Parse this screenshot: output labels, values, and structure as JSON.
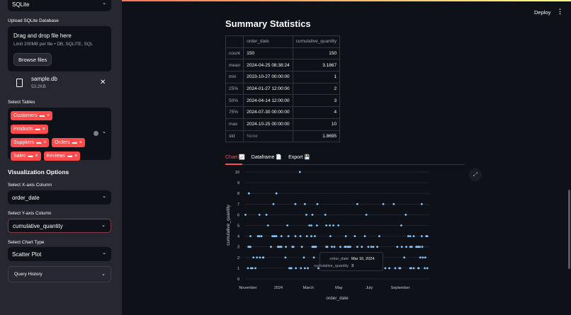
{
  "sidebar": {
    "db_type": "SQLite",
    "upload_label": "Upload SQLite Database",
    "dropzone_title": "Drag and drop file here",
    "dropzone_hint": "Limit 200MB per file • DB, SQLITE, SQL",
    "browse_label": "Browse files",
    "file": {
      "name": "sample.db",
      "size": "53.2KB"
    },
    "tables_label": "Select Tables",
    "tables": [
      "Customers",
      "Products",
      "Suppliers",
      "Orders",
      "Sales",
      "Reviews"
    ],
    "viz_heading": "Visualization Options",
    "x_label": "Select X-axis Column",
    "x_value": "order_date",
    "y_label": "Select Y-axis Column",
    "y_value": "cumulative_quantity",
    "chart_label": "Select Chart Type",
    "chart_value": "Scatter Plot",
    "history_label": "Query History"
  },
  "header": {
    "deploy": "Deploy"
  },
  "main": {
    "title": "Summary Statistics",
    "table": {
      "columns": [
        "",
        "order_date",
        "cumulative_quantity"
      ],
      "rows": [
        [
          "count",
          "150",
          "150"
        ],
        [
          "mean",
          "2024-04-25 08:38:24",
          "3.1867"
        ],
        [
          "min",
          "2023-10-27 00:00:00",
          "1"
        ],
        [
          "25%",
          "2024-01-27 12:00:00",
          "2"
        ],
        [
          "50%",
          "2024-04-14 12:00:00",
          "3"
        ],
        [
          "75%",
          "2024-07-30 00:00:00",
          "4"
        ],
        [
          "max",
          "2024-10-25 00:00:00",
          "10"
        ],
        [
          "std",
          "None",
          "1.8695"
        ]
      ]
    },
    "tabs": [
      "Chart 📈",
      "Dataframe 📄",
      "Export 💾"
    ],
    "active_tab": 0
  },
  "colors": {
    "accent": "#ff4b4b",
    "point": "#83c9ff",
    "sidebar": "#262730",
    "background": "#0e1117"
  },
  "chart_data": {
    "type": "scatter",
    "xlabel": "order_date",
    "ylabel": "cumulative_quantity",
    "x_ticks": [
      "November",
      "2024",
      "March",
      "May",
      "July",
      "September"
    ],
    "y_ticks": [
      0,
      1,
      2,
      3,
      4,
      5,
      6,
      7,
      8,
      9,
      10
    ],
    "ylim": [
      0,
      10
    ],
    "grid": true,
    "tooltip": {
      "x_label": "order_date",
      "x_value": "Mar 16, 2024",
      "y_label": "cumulative_quantity",
      "y_value": "3"
    },
    "points": [
      [
        "2024-02-13",
        10
      ],
      [
        "2023-11-03",
        8
      ],
      [
        "2023-12-28",
        8
      ],
      [
        "2023-12-22",
        7
      ],
      [
        "2024-02-04",
        7
      ],
      [
        "2024-02-23",
        7
      ],
      [
        "2024-03-19",
        7
      ],
      [
        "2024-06-07",
        7
      ],
      [
        "2024-07-29",
        7
      ],
      [
        "2024-08-19",
        7
      ],
      [
        "2024-10-14",
        7
      ],
      [
        "2023-10-27",
        6
      ],
      [
        "2023-11-24",
        6
      ],
      [
        "2023-12-08",
        6
      ],
      [
        "2024-02-26",
        6
      ],
      [
        "2024-03-09",
        6
      ],
      [
        "2024-04-04",
        6
      ],
      [
        "2024-06-25",
        6
      ],
      [
        "2024-09-12",
        6
      ],
      [
        "2023-12-11",
        5
      ],
      [
        "2024-01-19",
        5
      ],
      [
        "2024-03-03",
        5
      ],
      [
        "2024-03-07",
        5
      ],
      [
        "2024-03-18",
        5
      ],
      [
        "2024-04-06",
        5
      ],
      [
        "2024-04-13",
        5
      ],
      [
        "2024-04-20",
        5
      ],
      [
        "2024-04-30",
        5
      ],
      [
        "2024-09-03",
        5
      ],
      [
        "2023-11-06",
        4
      ],
      [
        "2023-11-21",
        4
      ],
      [
        "2023-11-24",
        4
      ],
      [
        "2023-11-28",
        4
      ],
      [
        "2023-12-20",
        4
      ],
      [
        "2023-12-23",
        4
      ],
      [
        "2023-12-25",
        4
      ],
      [
        "2023-12-28",
        4
      ],
      [
        "2024-01-07",
        4
      ],
      [
        "2024-01-21",
        4
      ],
      [
        "2024-02-04",
        4
      ],
      [
        "2024-02-14",
        4
      ],
      [
        "2024-02-27",
        4
      ],
      [
        "2024-03-07",
        4
      ],
      [
        "2024-03-14",
        4
      ],
      [
        "2024-04-14",
        4
      ],
      [
        "2024-05-15",
        4
      ],
      [
        "2024-06-02",
        4
      ],
      [
        "2024-06-22",
        4
      ],
      [
        "2024-07-21",
        4
      ],
      [
        "2024-09-17",
        4
      ],
      [
        "2024-09-21",
        4
      ],
      [
        "2024-09-28",
        4
      ],
      [
        "2024-10-14",
        4
      ],
      [
        "2024-10-23",
        4
      ],
      [
        "2024-10-25",
        4
      ],
      [
        "2023-11-02",
        3
      ],
      [
        "2023-11-04",
        3
      ],
      [
        "2023-11-06",
        3
      ],
      [
        "2023-12-17",
        3
      ],
      [
        "2023-12-31",
        3
      ],
      [
        "2024-01-02",
        3
      ],
      [
        "2024-01-05",
        3
      ],
      [
        "2024-01-07",
        3
      ],
      [
        "2024-01-16",
        3
      ],
      [
        "2024-01-29",
        3
      ],
      [
        "2024-01-31",
        3
      ],
      [
        "2024-02-17",
        3
      ],
      [
        "2024-03-09",
        3
      ],
      [
        "2024-03-11",
        3
      ],
      [
        "2024-03-13",
        3
      ],
      [
        "2024-03-14",
        3
      ],
      [
        "2024-03-16",
        3
      ],
      [
        "2024-04-06",
        3
      ],
      [
        "2024-04-08",
        3
      ],
      [
        "2024-04-17",
        3
      ],
      [
        "2024-04-22",
        3
      ],
      [
        "2024-05-04",
        3
      ],
      [
        "2024-05-13",
        3
      ],
      [
        "2024-05-15",
        3
      ],
      [
        "2024-05-19",
        3
      ],
      [
        "2024-05-21",
        3
      ],
      [
        "2024-05-24",
        3
      ],
      [
        "2024-06-07",
        3
      ],
      [
        "2024-06-16",
        3
      ],
      [
        "2024-06-29",
        3
      ],
      [
        "2024-07-05",
        3
      ],
      [
        "2024-07-09",
        3
      ],
      [
        "2024-07-17",
        3
      ],
      [
        "2024-08-26",
        3
      ],
      [
        "2024-09-04",
        3
      ],
      [
        "2024-09-13",
        3
      ],
      [
        "2024-09-21",
        3
      ],
      [
        "2024-09-24",
        3
      ],
      [
        "2024-10-03",
        3
      ],
      [
        "2024-10-05",
        3
      ],
      [
        "2024-10-07",
        3
      ],
      [
        "2024-10-10",
        3
      ],
      [
        "2024-10-15",
        3
      ],
      [
        "2023-11-12",
        2
      ],
      [
        "2023-11-19",
        2
      ],
      [
        "2023-11-25",
        2
      ],
      [
        "2023-12-01",
        2
      ],
      [
        "2023-12-02",
        2
      ],
      [
        "2024-01-15",
        2
      ],
      [
        "2024-02-21",
        2
      ],
      [
        "2024-03-12",
        2
      ],
      [
        "2024-09-09",
        2
      ],
      [
        "2024-10-11",
        2
      ],
      [
        "2024-10-16",
        2
      ],
      [
        "2024-10-21",
        2
      ],
      [
        "2023-11-01",
        1
      ],
      [
        "2023-11-07",
        1
      ],
      [
        "2023-11-10",
        1
      ],
      [
        "2023-11-16",
        1
      ],
      [
        "2024-01-23",
        1
      ],
      [
        "2024-01-25",
        1
      ],
      [
        "2024-01-27",
        1
      ],
      [
        "2024-02-05",
        1
      ],
      [
        "2024-02-15",
        1
      ],
      [
        "2024-02-23",
        1
      ],
      [
        "2024-02-29",
        1
      ],
      [
        "2024-03-21",
        1
      ],
      [
        "2024-08-02",
        1
      ],
      [
        "2024-08-10",
        1
      ],
      [
        "2024-08-22",
        1
      ],
      [
        "2024-08-30",
        1
      ],
      [
        "2024-09-01",
        1
      ],
      [
        "2024-09-21",
        1
      ],
      [
        "2024-09-23",
        1
      ],
      [
        "2024-09-28",
        1
      ],
      [
        "2024-10-07",
        1
      ],
      [
        "2024-10-08",
        1
      ],
      [
        "2024-10-20",
        1
      ],
      [
        "2024-10-25",
        1
      ]
    ]
  }
}
